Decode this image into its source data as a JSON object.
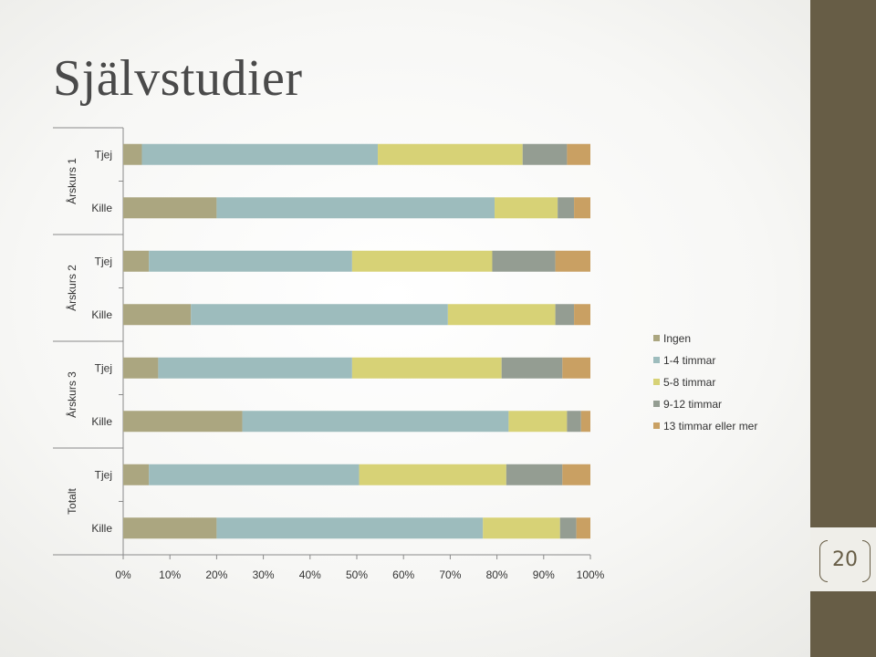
{
  "slide": {
    "title": "Självstudier",
    "page_number": "20",
    "colors": {
      "side_band": "#675d46",
      "page_number": "#675d46"
    }
  },
  "chart_data": {
    "type": "bar",
    "orientation": "horizontal",
    "stacked": "percent",
    "title": "",
    "xlabel": "",
    "ylabel": "",
    "xlim": [
      0,
      100
    ],
    "x_ticks": [
      "0%",
      "10%",
      "20%",
      "30%",
      "40%",
      "50%",
      "60%",
      "70%",
      "80%",
      "90%",
      "100%"
    ],
    "groups": [
      {
        "label": "Årskurs 1",
        "categories": [
          "Tjej",
          "Kille"
        ]
      },
      {
        "label": "Årskurs 2",
        "categories": [
          "Tjej",
          "Kille"
        ]
      },
      {
        "label": "Årskurs 3",
        "categories": [
          "Tjej",
          "Kille"
        ]
      },
      {
        "label": "Totalt",
        "categories": [
          "Tjej",
          "Kille"
        ]
      }
    ],
    "series": [
      {
        "name": "Ingen",
        "color": "#aba680",
        "values": [
          4,
          20,
          5.5,
          14.5,
          7.5,
          25.5,
          5.5,
          20
        ]
      },
      {
        "name": "1-4 timmar",
        "color": "#9dbcbd",
        "values": [
          50.5,
          59.5,
          43.5,
          55,
          41.5,
          57,
          45,
          57
        ]
      },
      {
        "name": "5-8 timmar",
        "color": "#d7d276",
        "values": [
          31,
          13.5,
          30,
          23,
          32,
          12.5,
          31.5,
          16.5
        ]
      },
      {
        "name": "9-12 timmar",
        "color": "#949d92",
        "values": [
          9.5,
          3.5,
          13.5,
          4,
          13,
          3,
          12,
          3.5
        ]
      },
      {
        "name": "13 timmar eller mer",
        "color": "#c9a063",
        "values": [
          5,
          3.5,
          7.5,
          3.5,
          6,
          2,
          6,
          3
        ]
      }
    ],
    "legend": {
      "position": "right"
    },
    "grid": false
  }
}
